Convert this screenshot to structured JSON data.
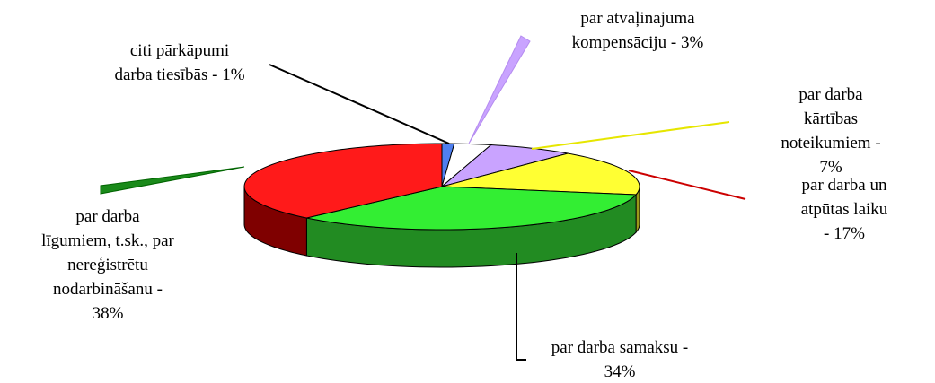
{
  "chart_data": {
    "type": "pie3d",
    "categories": [
      "citi pārkāpumi\ndarba tiesībās - 1%",
      "par atvaļinājuma\nkompensāciju - 3%",
      "par darba kārtības\nnoteikumiem - 7%",
      "par darba un\natpūtas laiku - 17%",
      "par darba samaksu -\n34%",
      "par darba\nlīgumiem, t.sk., par\nnereģistrētu\nnodarbināšanu -\n38%"
    ],
    "values": [
      1,
      3,
      7,
      17,
      34,
      38
    ],
    "colors": [
      "#4f7fef",
      "#ffffff",
      "#c9a3ff",
      "#ffff33",
      "#33ee33",
      "#ff1a1a"
    ],
    "side_colors": [
      "#26408a",
      "#9a9a9a",
      "#7a5aa8",
      "#9a9a1a",
      "#228b22",
      "#7f0000"
    ]
  }
}
